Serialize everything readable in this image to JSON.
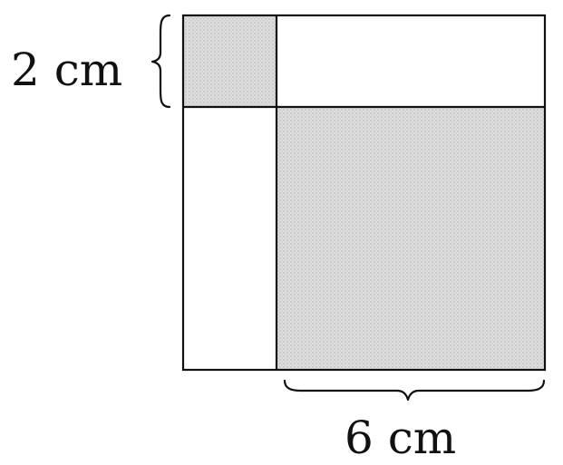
{
  "diagram": {
    "labels": {
      "left_dimension": "2 cm",
      "bottom_dimension": "6 cm"
    },
    "colors": {
      "shaded_fill": "#d9d9d9",
      "line": "#111111",
      "background": "#ffffff"
    },
    "regions": [
      {
        "name": "top-left-square",
        "shaded": true
      },
      {
        "name": "top-right-rectangle",
        "shaded": false
      },
      {
        "name": "bottom-left-rectangle",
        "shaded": false
      },
      {
        "name": "bottom-right-square",
        "shaded": true
      }
    ]
  }
}
